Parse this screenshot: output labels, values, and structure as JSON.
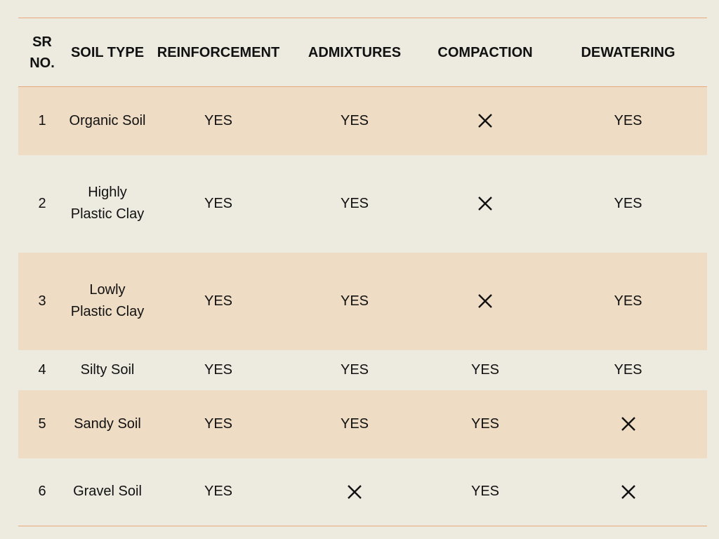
{
  "table": {
    "headers": {
      "sr_no": "SR NO.",
      "soil_type": "SOIL TYPE",
      "reinforcement": "REINFORCEMENT",
      "admixtures": "ADMIXTURES",
      "compaction": "COMPACTION",
      "dewatering": "DEWATERING"
    },
    "no_mark_icon": "cross-icon",
    "rows": [
      {
        "sr": "1",
        "soil": "Organic Soil",
        "reinforcement": "YES",
        "admixtures": "YES",
        "compaction": "",
        "dewatering": "YES"
      },
      {
        "sr": "2",
        "soil": "Highly Plastic Clay",
        "reinforcement": "YES",
        "admixtures": "YES",
        "compaction": "",
        "dewatering": "YES"
      },
      {
        "sr": "3",
        "soil": "Lowly Plastic Clay",
        "reinforcement": "YES",
        "admixtures": "YES",
        "compaction": "",
        "dewatering": "YES"
      },
      {
        "sr": "4",
        "soil": "Silty Soil",
        "reinforcement": "YES",
        "admixtures": "YES",
        "compaction": "YES",
        "dewatering": "YES"
      },
      {
        "sr": "5",
        "soil": "Sandy Soil",
        "reinforcement": "YES",
        "admixtures": "YES",
        "compaction": "YES",
        "dewatering": ""
      },
      {
        "sr": "6",
        "soil": "Gravel Soil",
        "reinforcement": "YES",
        "admixtures": "",
        "compaction": "YES",
        "dewatering": ""
      }
    ]
  }
}
